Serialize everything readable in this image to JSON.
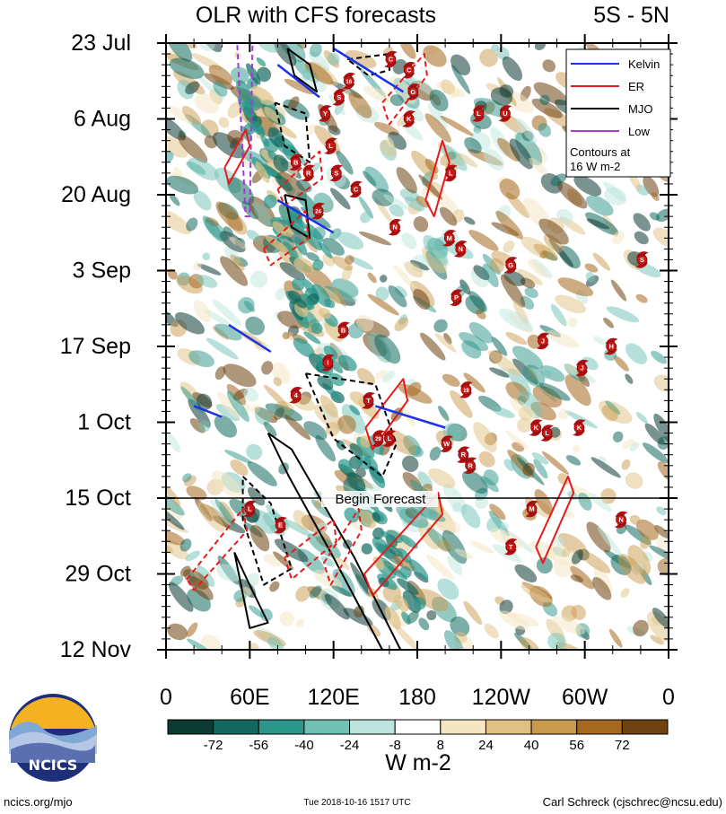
{
  "chart_data": {
    "type": "heatmap",
    "title": "OLR with CFS forecasts",
    "region": "5S - 5N",
    "x_ticks": [
      "0",
      "60E",
      "120E",
      "180",
      "120W",
      "60W",
      "0"
    ],
    "x_tick_values": [
      0,
      60,
      120,
      180,
      240,
      300,
      360
    ],
    "xlim": [
      0,
      360
    ],
    "y_ticks": [
      "23 Jul",
      "6 Aug",
      "20 Aug",
      "3 Sep",
      "17 Sep",
      "1 Oct",
      "15 Oct",
      "29 Oct",
      "12 Nov"
    ],
    "y_tick_days": [
      0,
      14,
      28,
      42,
      56,
      70,
      84,
      98,
      112
    ],
    "ylim_days": [
      0,
      112
    ],
    "forecast_start_day": 84,
    "forecast_label": "Begin Forecast",
    "legend": [
      {
        "name": "Kelvin",
        "color": "#1a33e6"
      },
      {
        "name": "ER",
        "color": "#e61a1a"
      },
      {
        "name": "MJO",
        "color": "#000000"
      },
      {
        "name": "Low",
        "color": "#a23bd6"
      }
    ],
    "legend_note_1": "Contours at",
    "legend_note_2": "16 W m-2",
    "colorbar": {
      "levels": [
        -72,
        -56,
        -40,
        -24,
        -8,
        8,
        24,
        40,
        56,
        72
      ],
      "labels": [
        "-72",
        "-56",
        "-40",
        "-24",
        "-8",
        "8",
        "24",
        "40",
        "56",
        "72"
      ],
      "colors": [
        "#0c3b34",
        "#13695f",
        "#2b968a",
        "#71c2b5",
        "#bde5dd",
        "#ffffff",
        "#f5e6c2",
        "#e0c184",
        "#c99a4e",
        "#a4681f",
        "#6e4211"
      ],
      "units": "W m-2"
    },
    "mjo_contours": [
      {
        "style": "solid",
        "points": [
          [
            87,
            1
          ],
          [
            103,
            4
          ],
          [
            108,
            9
          ],
          [
            92,
            6
          ],
          [
            87,
            1
          ]
        ]
      },
      {
        "style": "dashed",
        "points": [
          [
            78,
            11
          ],
          [
            100,
            13
          ],
          [
            103,
            22
          ],
          [
            85,
            19
          ],
          [
            78,
            11
          ]
        ]
      },
      {
        "style": "solid",
        "points": [
          [
            85,
            28
          ],
          [
            100,
            29
          ],
          [
            103,
            36
          ],
          [
            90,
            34
          ],
          [
            85,
            28
          ]
        ]
      },
      {
        "style": "solid",
        "points": [
          [
            73,
            72
          ],
          [
            90,
            75
          ],
          [
            135,
            95
          ],
          [
            168,
            112
          ],
          [
            155,
            112
          ],
          [
            120,
            95
          ],
          [
            88,
            80
          ],
          [
            73,
            72
          ]
        ]
      },
      {
        "style": "dashed",
        "points": [
          [
            100,
            61
          ],
          [
            150,
            63
          ],
          [
            165,
            74
          ],
          [
            155,
            80
          ],
          [
            120,
            73
          ],
          [
            100,
            61
          ]
        ]
      },
      {
        "style": "dashed",
        "points": [
          [
            55,
            80
          ],
          [
            75,
            85
          ],
          [
            90,
            97
          ],
          [
            70,
            100
          ],
          [
            55,
            88
          ],
          [
            55,
            80
          ]
        ]
      },
      {
        "style": "solid",
        "points": [
          [
            49,
            94
          ],
          [
            58,
            99
          ],
          [
            73,
            107
          ],
          [
            60,
            108
          ],
          [
            49,
            94
          ]
        ]
      },
      {
        "style": "dashed",
        "points": [
          [
            130,
            3
          ],
          [
            160,
            2
          ],
          [
            160,
            5
          ],
          [
            145,
            6
          ],
          [
            130,
            3
          ]
        ]
      }
    ],
    "er_contours": [
      {
        "style": "solid",
        "points": [
          [
            42,
            23
          ],
          [
            57,
            16
          ],
          [
            60,
            19
          ],
          [
            45,
            26
          ],
          [
            42,
            23
          ]
        ]
      },
      {
        "style": "dashed",
        "points": [
          [
            80,
            27
          ],
          [
            110,
            20
          ],
          [
            112,
            25
          ],
          [
            85,
            30
          ],
          [
            80,
            27
          ]
        ]
      },
      {
        "style": "dashed",
        "points": [
          [
            70,
            38
          ],
          [
            100,
            31
          ],
          [
            102,
            36
          ],
          [
            75,
            41
          ],
          [
            70,
            38
          ]
        ]
      },
      {
        "style": "solid",
        "points": [
          [
            186,
            29
          ],
          [
            198,
            18
          ],
          [
            203,
            22
          ],
          [
            192,
            32
          ],
          [
            186,
            29
          ]
        ]
      },
      {
        "style": "dashed",
        "points": [
          [
            155,
            11
          ],
          [
            185,
            2
          ],
          [
            187,
            6
          ],
          [
            160,
            15
          ],
          [
            155,
            11
          ]
        ]
      },
      {
        "style": "solid",
        "points": [
          [
            143,
            71
          ],
          [
            170,
            62
          ],
          [
            173,
            66
          ],
          [
            148,
            75
          ],
          [
            143,
            71
          ]
        ]
      },
      {
        "style": "solid",
        "points": [
          [
            142,
            98
          ],
          [
            195,
            83
          ],
          [
            198,
            87
          ],
          [
            148,
            102
          ],
          [
            142,
            98
          ]
        ]
      },
      {
        "style": "solid",
        "points": [
          [
            265,
            93
          ],
          [
            288,
            80
          ],
          [
            292,
            83
          ],
          [
            270,
            96
          ],
          [
            265,
            93
          ]
        ]
      },
      {
        "style": "dashed",
        "points": [
          [
            15,
            99
          ],
          [
            55,
            86
          ],
          [
            58,
            90
          ],
          [
            20,
            101
          ],
          [
            15,
            99
          ]
        ]
      },
      {
        "style": "dashed",
        "points": [
          [
            85,
            95
          ],
          [
            120,
            88
          ],
          [
            122,
            92
          ],
          [
            90,
            99
          ],
          [
            85,
            95
          ]
        ]
      },
      {
        "style": "dashed",
        "points": [
          [
            113,
            96
          ],
          [
            138,
            86
          ],
          [
            140,
            90
          ],
          [
            118,
            100
          ],
          [
            113,
            96
          ]
        ]
      }
    ],
    "kelvin_contours": [
      {
        "points": [
          [
            120,
            1
          ],
          [
            170,
            9
          ]
        ]
      },
      {
        "points": [
          [
            80,
            4
          ],
          [
            110,
            10
          ]
        ]
      },
      {
        "points": [
          [
            45,
            52
          ],
          [
            75,
            57
          ]
        ]
      },
      {
        "points": [
          [
            150,
            67
          ],
          [
            200,
            71
          ]
        ]
      },
      {
        "points": [
          [
            80,
            29
          ],
          [
            120,
            35
          ]
        ]
      },
      {
        "points": [
          [
            20,
            67
          ],
          [
            40,
            69
          ]
        ]
      }
    ],
    "low_contours": [
      {
        "points": [
          [
            51,
            0
          ],
          [
            62,
            0
          ],
          [
            60,
            32
          ],
          [
            57,
            32
          ],
          [
            51,
            0
          ]
        ]
      }
    ],
    "storms": [
      {
        "label": "C",
        "x": 161,
        "y": 3
      },
      {
        "label": "C",
        "x": 174,
        "y": 5
      },
      {
        "label": "16",
        "x": 131,
        "y": 7
      },
      {
        "label": "G",
        "x": 177,
        "y": 9
      },
      {
        "label": "S",
        "x": 124,
        "y": 10
      },
      {
        "label": "K",
        "x": 174,
        "y": 14
      },
      {
        "label": "Y",
        "x": 114,
        "y": 13
      },
      {
        "label": "L",
        "x": 224,
        "y": 13
      },
      {
        "label": "U",
        "x": 243,
        "y": 13
      },
      {
        "label": "L",
        "x": 118,
        "y": 19
      },
      {
        "label": "B",
        "x": 93,
        "y": 22
      },
      {
        "label": "R",
        "x": 102,
        "y": 24
      },
      {
        "label": "S",
        "x": 122,
        "y": 24
      },
      {
        "label": "L",
        "x": 204,
        "y": 24
      },
      {
        "label": "C",
        "x": 136,
        "y": 27
      },
      {
        "label": "24",
        "x": 109,
        "y": 31
      },
      {
        "label": "N",
        "x": 164,
        "y": 34
      },
      {
        "label": "M",
        "x": 203,
        "y": 36
      },
      {
        "label": "N",
        "x": 211,
        "y": 38
      },
      {
        "label": "G",
        "x": 247,
        "y": 41
      },
      {
        "label": "S",
        "x": 341,
        "y": 40
      },
      {
        "label": "B",
        "x": 127,
        "y": 53
      },
      {
        "label": "P",
        "x": 208,
        "y": 47
      },
      {
        "label": "J",
        "x": 270,
        "y": 55
      },
      {
        "label": "J",
        "x": 298,
        "y": 60
      },
      {
        "label": "H",
        "x": 319,
        "y": 56
      },
      {
        "label": "I",
        "x": 116,
        "y": 59
      },
      {
        "label": "4",
        "x": 93,
        "y": 65
      },
      {
        "label": "T",
        "x": 145,
        "y": 66
      },
      {
        "label": "19",
        "x": 215,
        "y": 64
      },
      {
        "label": "K",
        "x": 265,
        "y": 71
      },
      {
        "label": "L",
        "x": 273,
        "y": 72
      },
      {
        "label": "K",
        "x": 296,
        "y": 71
      },
      {
        "label": "29",
        "x": 152,
        "y": 73
      },
      {
        "label": "L",
        "x": 160,
        "y": 73
      },
      {
        "label": "W",
        "x": 201,
        "y": 74
      },
      {
        "label": "R",
        "x": 213,
        "y": 76
      },
      {
        "label": "R",
        "x": 218,
        "y": 78
      },
      {
        "label": "M",
        "x": 262,
        "y": 86
      },
      {
        "label": "L",
        "x": 60,
        "y": 86
      },
      {
        "label": "E",
        "x": 82,
        "y": 89
      },
      {
        "label": "N",
        "x": 326,
        "y": 88
      },
      {
        "label": "T",
        "x": 247,
        "y": 93
      }
    ]
  },
  "footer": {
    "left": "ncics.org/mjo",
    "center": "Tue 2018-10-16 1517 UTC",
    "right": "Carl Schreck (cjschrec@ncsu.edu)",
    "logo_text": "NCICS"
  }
}
